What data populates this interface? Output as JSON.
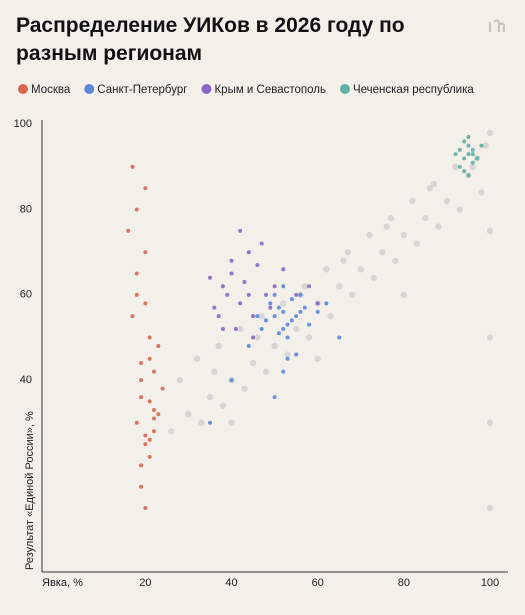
{
  "chart_data": {
    "type": "scatter",
    "title": "Распределение УИКов в 2026 году по разным регионам",
    "x_label": "Явка, %",
    "y_label": "Результат «Единой России», %",
    "xlim": [
      -4,
      100
    ],
    "xticks": [
      20,
      40,
      60,
      80,
      100
    ],
    "ylim": [
      -5,
      101
    ],
    "yticks": [
      40,
      60,
      80,
      100
    ],
    "grid": false,
    "series": [
      {
        "color": "#cfcfcf",
        "x": [
          30,
          35,
          40,
          45,
          50,
          55,
          60,
          65,
          70,
          75,
          80,
          85,
          90,
          95,
          99,
          28,
          33,
          38,
          43,
          48,
          53,
          58,
          63,
          68,
          73,
          78,
          83,
          88,
          93,
          98,
          32,
          37,
          42,
          47,
          52,
          57,
          62,
          67,
          72,
          77,
          82,
          87,
          92,
          97,
          100,
          26,
          36,
          46,
          56,
          66,
          76,
          86,
          96,
          40,
          60,
          80,
          100,
          100,
          100,
          100
        ],
        "values": [
          32,
          36,
          40,
          44,
          48,
          52,
          58,
          62,
          66,
          70,
          74,
          78,
          82,
          88,
          95,
          40,
          30,
          34,
          38,
          42,
          46,
          50,
          55,
          60,
          64,
          68,
          72,
          76,
          80,
          84,
          45,
          48,
          52,
          55,
          58,
          62,
          66,
          70,
          74,
          78,
          82,
          86,
          90,
          92,
          98,
          28,
          42,
          50,
          60,
          68,
          76,
          85,
          90,
          30,
          45,
          60,
          10,
          50,
          75,
          30
        ]
      },
      {
        "name": "Москва",
        "color": "#d9674f",
        "x": [
          18,
          20,
          21,
          19,
          22,
          17,
          20,
          23,
          19,
          21,
          18,
          22,
          20,
          16,
          24,
          19,
          21,
          20,
          18,
          22,
          17,
          21,
          19,
          23,
          20,
          18,
          22,
          20,
          21,
          19
        ],
        "values": [
          30,
          25,
          35,
          40,
          28,
          55,
          70,
          32,
          20,
          45,
          60,
          33,
          85,
          75,
          38,
          15,
          50,
          27,
          65,
          42,
          90,
          22,
          36,
          48,
          10,
          80,
          31,
          58,
          26,
          44
        ]
      },
      {
        "name": "Санкт-Петербург",
        "color": "#5b86d9",
        "x": [
          50,
          52,
          54,
          51,
          53,
          55,
          49,
          56,
          52,
          48,
          57,
          50,
          53,
          46,
          58,
          54,
          51,
          44,
          60,
          52,
          55,
          47,
          53,
          40,
          62,
          50,
          56,
          35,
          65,
          52
        ],
        "values": [
          55,
          56,
          54,
          57,
          53,
          55,
          58,
          56,
          52,
          54,
          57,
          60,
          50,
          55,
          53,
          59,
          51,
          48,
          56,
          62,
          46,
          52,
          45,
          40,
          58,
          36,
          60,
          30,
          50,
          42
        ]
      },
      {
        "name": "Крым и Севастополь",
        "color": "#8a66c4",
        "x": [
          42,
          38,
          45,
          40,
          48,
          36,
          44,
          50,
          41,
          46,
          39,
          43,
          55,
          37,
          47,
          52,
          40,
          45,
          58,
          35,
          49,
          42,
          60,
          44,
          38
        ],
        "values": [
          58,
          62,
          55,
          65,
          60,
          57,
          70,
          62,
          52,
          67,
          60,
          63,
          60,
          55,
          72,
          66,
          68,
          50,
          62,
          64,
          57,
          75,
          58,
          60,
          52
        ]
      },
      {
        "name": "Чеченская республика",
        "color": "#5eb0a3",
        "x": [
          95,
          94,
          96,
          93,
          95,
          97,
          94,
          96,
          95,
          92,
          98,
          95,
          94,
          96,
          93
        ],
        "values": [
          93,
          92,
          94,
          90,
          95,
          92,
          96,
          91,
          88,
          93,
          95,
          97,
          89,
          93,
          94
        ]
      }
    ]
  }
}
